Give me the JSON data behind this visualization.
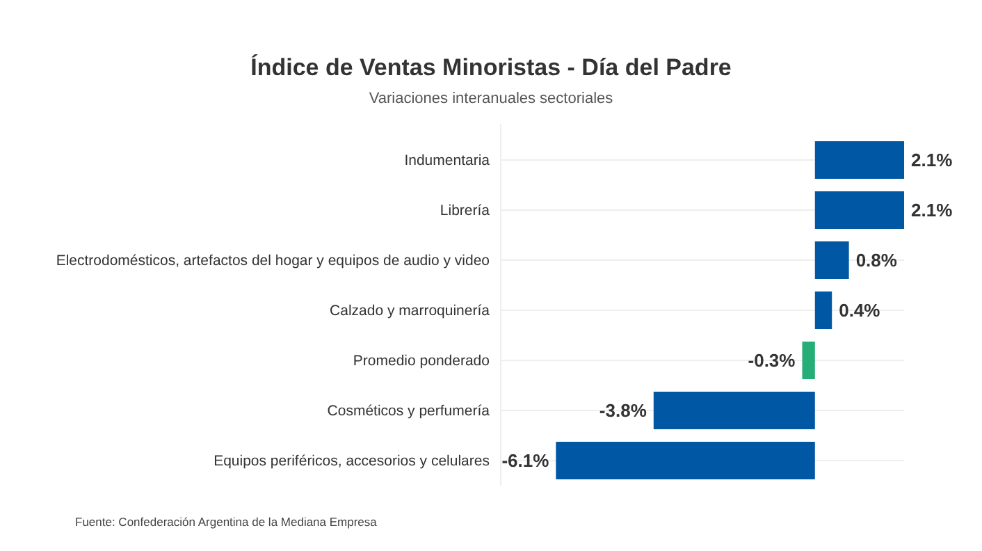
{
  "chart_data": {
    "type": "bar",
    "orientation": "horizontal",
    "title": "Índice de Ventas Minoristas - Día del Padre",
    "subtitle": "Variaciones interanuales sectoriales",
    "categories": [
      "Indumentaria",
      "Librería",
      "Electrodomésticos, artefactos del hogar y equipos de audio y video",
      "Calzado y marroquinería",
      "Promedio ponderado",
      "Cosméticos y perfumería",
      "Equipos periféricos, accesorios y celulares"
    ],
    "values": [
      2.1,
      2.1,
      0.8,
      0.4,
      -0.3,
      -3.8,
      -6.1
    ],
    "colors": [
      "#0057a4",
      "#0057a4",
      "#0057a4",
      "#0057a4",
      "#25ae77",
      "#0057a4",
      "#0057a4"
    ],
    "value_labels": [
      "2.1%",
      "2.1%",
      "0.8%",
      "0.4%",
      "-0.3%",
      "-3.8%",
      "-6.1%"
    ],
    "xlim": [
      -7.4,
      2.1
    ],
    "grid": "y",
    "tick_labels": "y",
    "annotations": [
      "Fuente: Confederación Argentina de la Mediana Empresa"
    ]
  }
}
